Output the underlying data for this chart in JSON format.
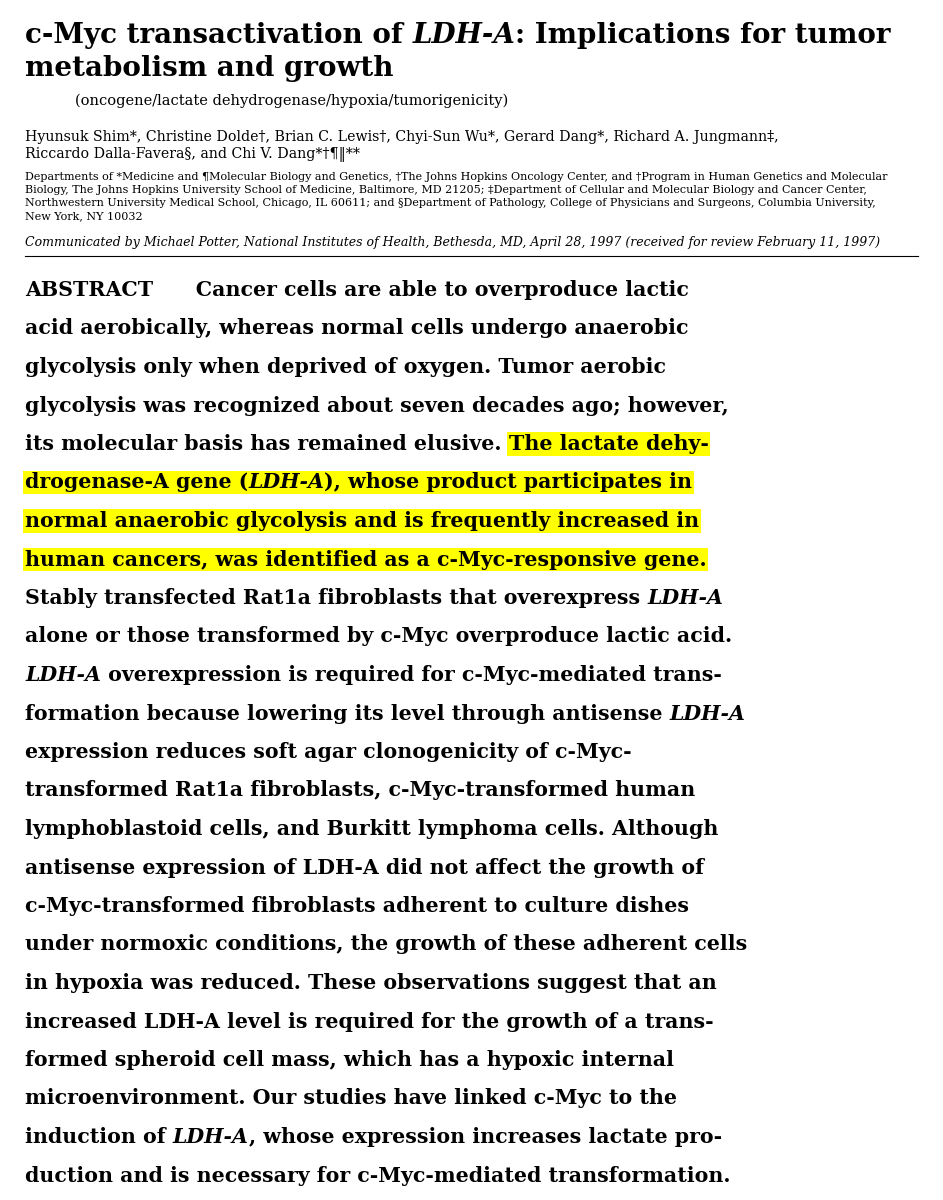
{
  "bg_color": "#ffffff",
  "highlight_color": "#FFFF00",
  "title_part1": "c-Myc transactivation of ",
  "title_italic": "LDH-A",
  "title_part2": ": Implications for tumor",
  "title_line2": "metabolism and growth",
  "subtitle": "(oncogene/lactate dehydrogenase/hypoxia/tumorigenicity)",
  "authors_line1": "Hyunsuk Shim*, Christine Dolde†, Brian C. Lewis†, Chyi-Sun Wu*, Gerard Dang*, Richard A. Jungmann‡,",
  "authors_line2": "Riccardo Dalla-Favera§, and Chi V. Dang*†¶‖**",
  "affil1": "Departments of *Medicine and ¶Molecular Biology and Genetics, †The Johns Hopkins Oncology Center, and †Program in Human Genetics and Molecular",
  "affil2": "Biology, The Johns Hopkins University School of Medicine, Baltimore, MD 21205; ‡Department of Cellular and Molecular Biology and Cancer Center,",
  "affil3": "Northwestern University Medical School, Chicago, IL 60611; and §Department of Pathology, College of Physicians and Surgeons, Columbia University,",
  "affil4": "New York, NY 10032",
  "communicated": "Communicated by Michael Potter, National Institutes of Health, Bethesda, MD, April 28, 1997 (received for review February 11, 1997)",
  "lines": [
    [
      [
        "ABSTRACT",
        true,
        false,
        false
      ],
      [
        "      Cancer cells are able to overproduce lactic",
        true,
        false,
        false
      ]
    ],
    [
      [
        "acid aerobically, whereas normal cells undergo anaerobic",
        true,
        false,
        false
      ]
    ],
    [
      [
        "glycolysis only when deprived of oxygen. Tumor aerobic",
        true,
        false,
        false
      ]
    ],
    [
      [
        "glycolysis was recognized about seven decades ago; however,",
        true,
        false,
        false
      ]
    ],
    [
      [
        "its molecular basis has remained elusive. ",
        true,
        false,
        false
      ],
      [
        "The lactate dehy-",
        true,
        false,
        true
      ]
    ],
    [
      [
        "drogenase-A gene (",
        true,
        false,
        true
      ],
      [
        "LDH-A",
        true,
        true,
        true
      ],
      [
        "), whose product participates in",
        true,
        false,
        true
      ]
    ],
    [
      [
        "normal anaerobic glycolysis and is frequently increased in",
        true,
        false,
        true
      ]
    ],
    [
      [
        "human cancers, was identified as a c-Myc-responsive gene.",
        true,
        false,
        true
      ]
    ],
    [
      [
        "Stably transfected Rat1a fibroblasts that overexpress ",
        true,
        false,
        false
      ],
      [
        "LDH-A",
        true,
        true,
        false
      ]
    ],
    [
      [
        "alone or those transformed by c-Myc overproduce lactic acid.",
        true,
        false,
        false
      ]
    ],
    [
      [
        "LDH-A",
        true,
        true,
        false
      ],
      [
        " overexpression is required for c-Myc-mediated trans-",
        true,
        false,
        false
      ]
    ],
    [
      [
        "formation because lowering its level through antisense ",
        true,
        false,
        false
      ],
      [
        "LDH-A",
        true,
        true,
        false
      ]
    ],
    [
      [
        "expression reduces soft agar clonogenicity of c-Myc-",
        true,
        false,
        false
      ]
    ],
    [
      [
        "transformed Rat1a fibroblasts, c-Myc-transformed human",
        true,
        false,
        false
      ]
    ],
    [
      [
        "lymphoblastoid cells, and Burkitt lymphoma cells. Although",
        true,
        false,
        false
      ]
    ],
    [
      [
        "antisense expression of LDH-A did not affect the growth of",
        true,
        false,
        false
      ]
    ],
    [
      [
        "c-Myc-transformed fibroblasts adherent to culture dishes",
        true,
        false,
        false
      ]
    ],
    [
      [
        "under normoxic conditions, the growth of these adherent cells",
        true,
        false,
        false
      ]
    ],
    [
      [
        "in hypoxia was reduced. These observations suggest that an",
        true,
        false,
        false
      ]
    ],
    [
      [
        "increased LDH-A level is required for the growth of a trans-",
        true,
        false,
        false
      ]
    ],
    [
      [
        "formed spheroid cell mass, which has a hypoxic internal",
        true,
        false,
        false
      ]
    ],
    [
      [
        "microenvironment. Our studies have linked c-Myc to the",
        true,
        false,
        false
      ]
    ],
    [
      [
        "induction of ",
        true,
        false,
        false
      ],
      [
        "LDH-A",
        true,
        true,
        false
      ],
      [
        ", whose expression increases lactate pro-",
        true,
        false,
        false
      ]
    ],
    [
      [
        "duction and is necessary for c-Myc-mediated transformation.",
        true,
        false,
        false
      ]
    ]
  ]
}
